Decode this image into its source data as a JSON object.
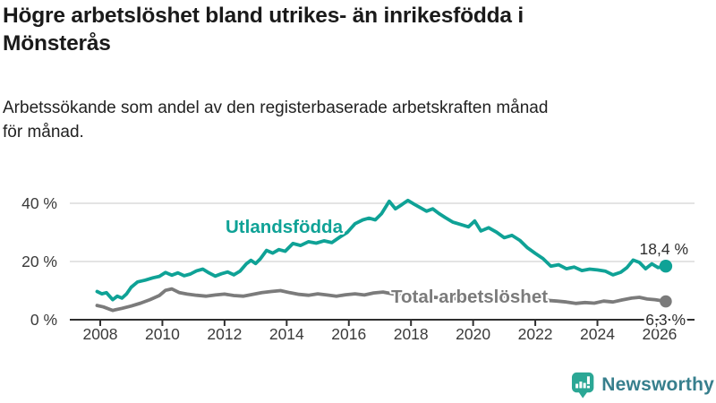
{
  "header": {
    "title": "Högre arbetslöshet bland utrikes- än inrikesfödda i\nMönsterås",
    "subtitle": "Arbetssökande som andel av den registerbaserade arbetskraften månad\nför månad."
  },
  "chart_data": {
    "type": "line",
    "title": "Högre arbetslöshet bland utrikes- än inrikesfödda i Mönsterås",
    "subtitle": "Arbetssökande som andel av den registerbaserade arbetskraften månad för månad.",
    "unit": "%",
    "grid": "horizontal",
    "legend": "inline-labels",
    "x_axis": {
      "ticks": [
        2008,
        2010,
        2012,
        2014,
        2016,
        2018,
        2020,
        2022,
        2024,
        2026
      ],
      "range": [
        2007.8,
        2026.5
      ]
    },
    "y_axis": {
      "ticks": [
        {
          "value": 0,
          "label": "0 %"
        },
        {
          "value": 20,
          "label": "20 %"
        },
        {
          "value": 40,
          "label": "40 %"
        }
      ],
      "range": [
        0,
        44
      ]
    },
    "series": [
      {
        "name": "Utlandsfödda",
        "color": "#0fa296",
        "end_label": "18,4 %",
        "end_value": 18.4,
        "points": [
          [
            2007.9,
            9.7
          ],
          [
            2008.05,
            8.9
          ],
          [
            2008.2,
            9.3
          ],
          [
            2008.4,
            6.9
          ],
          [
            2008.55,
            8.1
          ],
          [
            2008.7,
            7.4
          ],
          [
            2008.85,
            8.9
          ],
          [
            2009.0,
            11.2
          ],
          [
            2009.2,
            13.0
          ],
          [
            2009.45,
            13.6
          ],
          [
            2009.7,
            14.4
          ],
          [
            2009.9,
            14.9
          ],
          [
            2010.1,
            16.2
          ],
          [
            2010.3,
            15.3
          ],
          [
            2010.5,
            16.1
          ],
          [
            2010.7,
            15.1
          ],
          [
            2010.9,
            15.7
          ],
          [
            2011.1,
            16.8
          ],
          [
            2011.3,
            17.4
          ],
          [
            2011.5,
            16.1
          ],
          [
            2011.7,
            15.0
          ],
          [
            2011.9,
            15.8
          ],
          [
            2012.1,
            16.4
          ],
          [
            2012.3,
            15.4
          ],
          [
            2012.5,
            16.7
          ],
          [
            2012.7,
            19.2
          ],
          [
            2012.85,
            20.4
          ],
          [
            2013.0,
            19.3
          ],
          [
            2013.15,
            20.9
          ],
          [
            2013.35,
            23.8
          ],
          [
            2013.55,
            22.9
          ],
          [
            2013.75,
            24.1
          ],
          [
            2013.95,
            23.5
          ],
          [
            2014.2,
            26.2
          ],
          [
            2014.45,
            25.5
          ],
          [
            2014.7,
            26.8
          ],
          [
            2014.95,
            26.3
          ],
          [
            2015.2,
            27.1
          ],
          [
            2015.45,
            26.5
          ],
          [
            2015.7,
            28.3
          ],
          [
            2015.95,
            30.0
          ],
          [
            2016.2,
            33.0
          ],
          [
            2016.45,
            34.3
          ],
          [
            2016.65,
            34.9
          ],
          [
            2016.85,
            34.3
          ],
          [
            2017.05,
            36.4
          ],
          [
            2017.3,
            40.7
          ],
          [
            2017.5,
            38.1
          ],
          [
            2017.7,
            39.5
          ],
          [
            2017.9,
            41.0
          ],
          [
            2018.1,
            39.7
          ],
          [
            2018.3,
            38.5
          ],
          [
            2018.5,
            37.3
          ],
          [
            2018.7,
            38.1
          ],
          [
            2018.9,
            36.5
          ],
          [
            2019.1,
            35.1
          ],
          [
            2019.35,
            33.5
          ],
          [
            2019.6,
            32.7
          ],
          [
            2019.85,
            31.9
          ],
          [
            2020.05,
            33.9
          ],
          [
            2020.25,
            30.5
          ],
          [
            2020.5,
            31.6
          ],
          [
            2020.75,
            30.1
          ],
          [
            2021.0,
            28.2
          ],
          [
            2021.25,
            29.0
          ],
          [
            2021.5,
            27.3
          ],
          [
            2021.75,
            24.7
          ],
          [
            2022.0,
            22.8
          ],
          [
            2022.25,
            21.0
          ],
          [
            2022.5,
            18.4
          ],
          [
            2022.75,
            18.9
          ],
          [
            2023.0,
            17.5
          ],
          [
            2023.25,
            18.1
          ],
          [
            2023.5,
            16.9
          ],
          [
            2023.75,
            17.4
          ],
          [
            2024.0,
            17.1
          ],
          [
            2024.25,
            16.7
          ],
          [
            2024.5,
            15.4
          ],
          [
            2024.75,
            16.3
          ],
          [
            2024.95,
            17.9
          ],
          [
            2025.15,
            20.5
          ],
          [
            2025.35,
            19.7
          ],
          [
            2025.55,
            17.5
          ],
          [
            2025.75,
            19.2
          ],
          [
            2025.95,
            17.9
          ],
          [
            2026.2,
            18.4
          ]
        ]
      },
      {
        "name": "Total arbetslöshet",
        "color": "#7b7b7b",
        "end_label": "6,3 %",
        "end_value": 6.3,
        "points": [
          [
            2007.9,
            4.9
          ],
          [
            2008.1,
            4.4
          ],
          [
            2008.4,
            3.2
          ],
          [
            2008.7,
            3.9
          ],
          [
            2009.0,
            4.7
          ],
          [
            2009.3,
            5.7
          ],
          [
            2009.6,
            6.9
          ],
          [
            2009.9,
            8.3
          ],
          [
            2010.1,
            10.1
          ],
          [
            2010.3,
            10.6
          ],
          [
            2010.55,
            9.3
          ],
          [
            2010.8,
            8.8
          ],
          [
            2011.1,
            8.4
          ],
          [
            2011.4,
            8.1
          ],
          [
            2011.7,
            8.5
          ],
          [
            2012.0,
            8.8
          ],
          [
            2012.3,
            8.3
          ],
          [
            2012.6,
            8.1
          ],
          [
            2012.9,
            8.7
          ],
          [
            2013.2,
            9.3
          ],
          [
            2013.5,
            9.7
          ],
          [
            2013.8,
            10.0
          ],
          [
            2014.1,
            9.3
          ],
          [
            2014.4,
            8.7
          ],
          [
            2014.7,
            8.4
          ],
          [
            2015.0,
            8.9
          ],
          [
            2015.3,
            8.5
          ],
          [
            2015.6,
            8.1
          ],
          [
            2015.9,
            8.6
          ],
          [
            2016.2,
            8.9
          ],
          [
            2016.5,
            8.5
          ],
          [
            2016.8,
            9.2
          ],
          [
            2017.1,
            9.5
          ],
          [
            2017.4,
            8.9
          ],
          [
            2017.7,
            8.4
          ],
          [
            2018.0,
            8.6
          ],
          [
            2018.3,
            8.2
          ],
          [
            2018.6,
            7.8
          ],
          [
            2019.0,
            7.5
          ],
          [
            2019.5,
            7.2
          ],
          [
            2020.0,
            7.8
          ],
          [
            2020.35,
            9.0
          ],
          [
            2020.7,
            8.6
          ],
          [
            2021.1,
            8.0
          ],
          [
            2021.5,
            7.5
          ],
          [
            2021.9,
            7.1
          ],
          [
            2022.3,
            6.7
          ],
          [
            2022.7,
            6.4
          ],
          [
            2023.0,
            6.1
          ],
          [
            2023.3,
            5.6
          ],
          [
            2023.6,
            5.9
          ],
          [
            2023.9,
            5.7
          ],
          [
            2024.2,
            6.4
          ],
          [
            2024.5,
            6.1
          ],
          [
            2024.8,
            6.8
          ],
          [
            2025.1,
            7.4
          ],
          [
            2025.35,
            7.7
          ],
          [
            2025.6,
            7.1
          ],
          [
            2025.85,
            6.9
          ],
          [
            2026.2,
            6.3
          ]
        ]
      }
    ],
    "colors": {
      "foreign_born_line": "#0fa296",
      "total_line": "#7b7b7b",
      "axis": "#2f2f2f",
      "gridline": "#dcdcdc",
      "tick_text": "#3a3a3a"
    }
  },
  "footer": {
    "brand": "Newsworthy",
    "icon": "newsworthy-speech-bubble-chart-icon",
    "icon_color": "#2ba795",
    "text_color": "#377f8d"
  }
}
